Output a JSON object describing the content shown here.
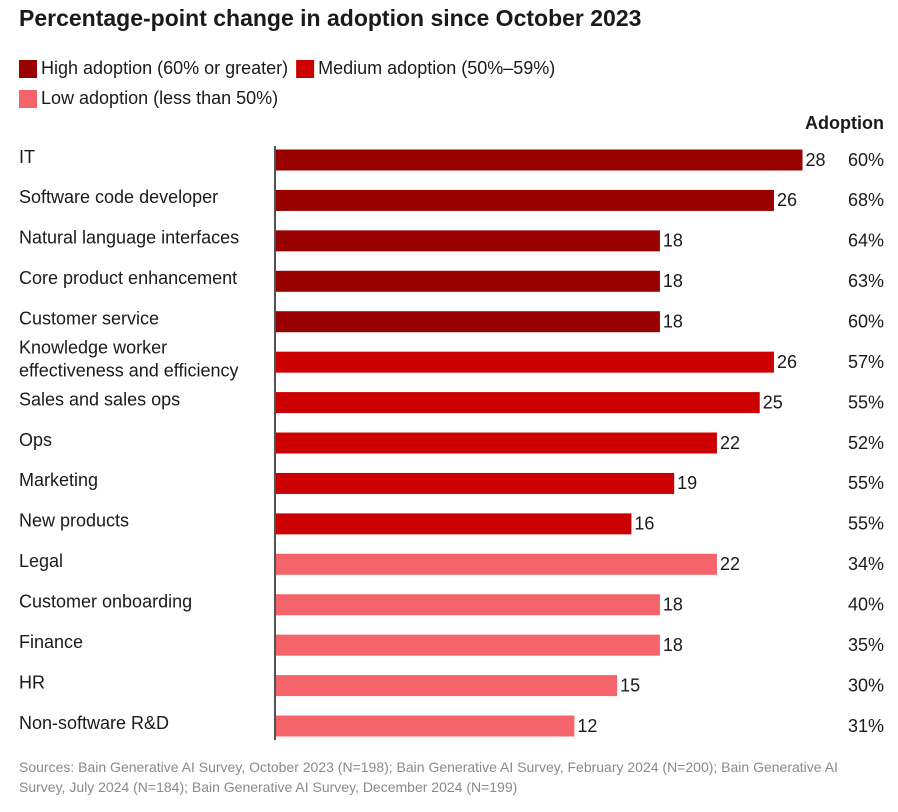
{
  "chart_data": {
    "type": "bar",
    "orientation": "horizontal",
    "title": "Percentage-point change in adoption since October 2023",
    "categories": [
      "IT",
      "Software code developer",
      "Natural language interfaces",
      "Core product enhancement",
      "Customer service",
      "Knowledge worker effectiveness and efficiency",
      "Sales and sales ops",
      "Ops",
      "Marketing",
      "New products",
      "Legal",
      "Customer onboarding",
      "Finance",
      "HR",
      "Non-software R&D"
    ],
    "series": [
      {
        "name": "High adoption (60% or greater)",
        "color": "#990000",
        "values": [
          28,
          26,
          18,
          18,
          18,
          null,
          null,
          null,
          null,
          null,
          null,
          null,
          null,
          null,
          null
        ]
      },
      {
        "name": "Medium adoption (50%–59%)",
        "color": "#cc0000",
        "values": [
          null,
          null,
          null,
          null,
          null,
          26,
          25,
          22,
          19,
          16,
          null,
          null,
          null,
          null,
          null
        ]
      },
      {
        "name": "Low adoption (less than 50%)",
        "color": "#f4646a",
        "values": [
          null,
          null,
          null,
          null,
          null,
          null,
          null,
          null,
          null,
          null,
          22,
          18,
          18,
          15,
          12
        ]
      }
    ],
    "adoption": {
      "label": "Adoption",
      "values": [
        60,
        68,
        64,
        63,
        60,
        57,
        55,
        52,
        55,
        55,
        34,
        40,
        35,
        30,
        31
      ],
      "value_labels": [
        "60%",
        "68%",
        "64%",
        "63%",
        "60%",
        "57%",
        "55%",
        "52%",
        "55%",
        "55%",
        "34%",
        "40%",
        "35%",
        "30%",
        "31%"
      ]
    },
    "xlim": [
      -9,
      30
    ],
    "source": "Sources: Bain Generative AI Survey, October 2023 (N=198); Bain Generative AI Survey, February 2024 (N=200); Bain Generative AI Survey, July 2024 (N=184); Bain Generative AI Survey, December 2024 (N=199)"
  }
}
